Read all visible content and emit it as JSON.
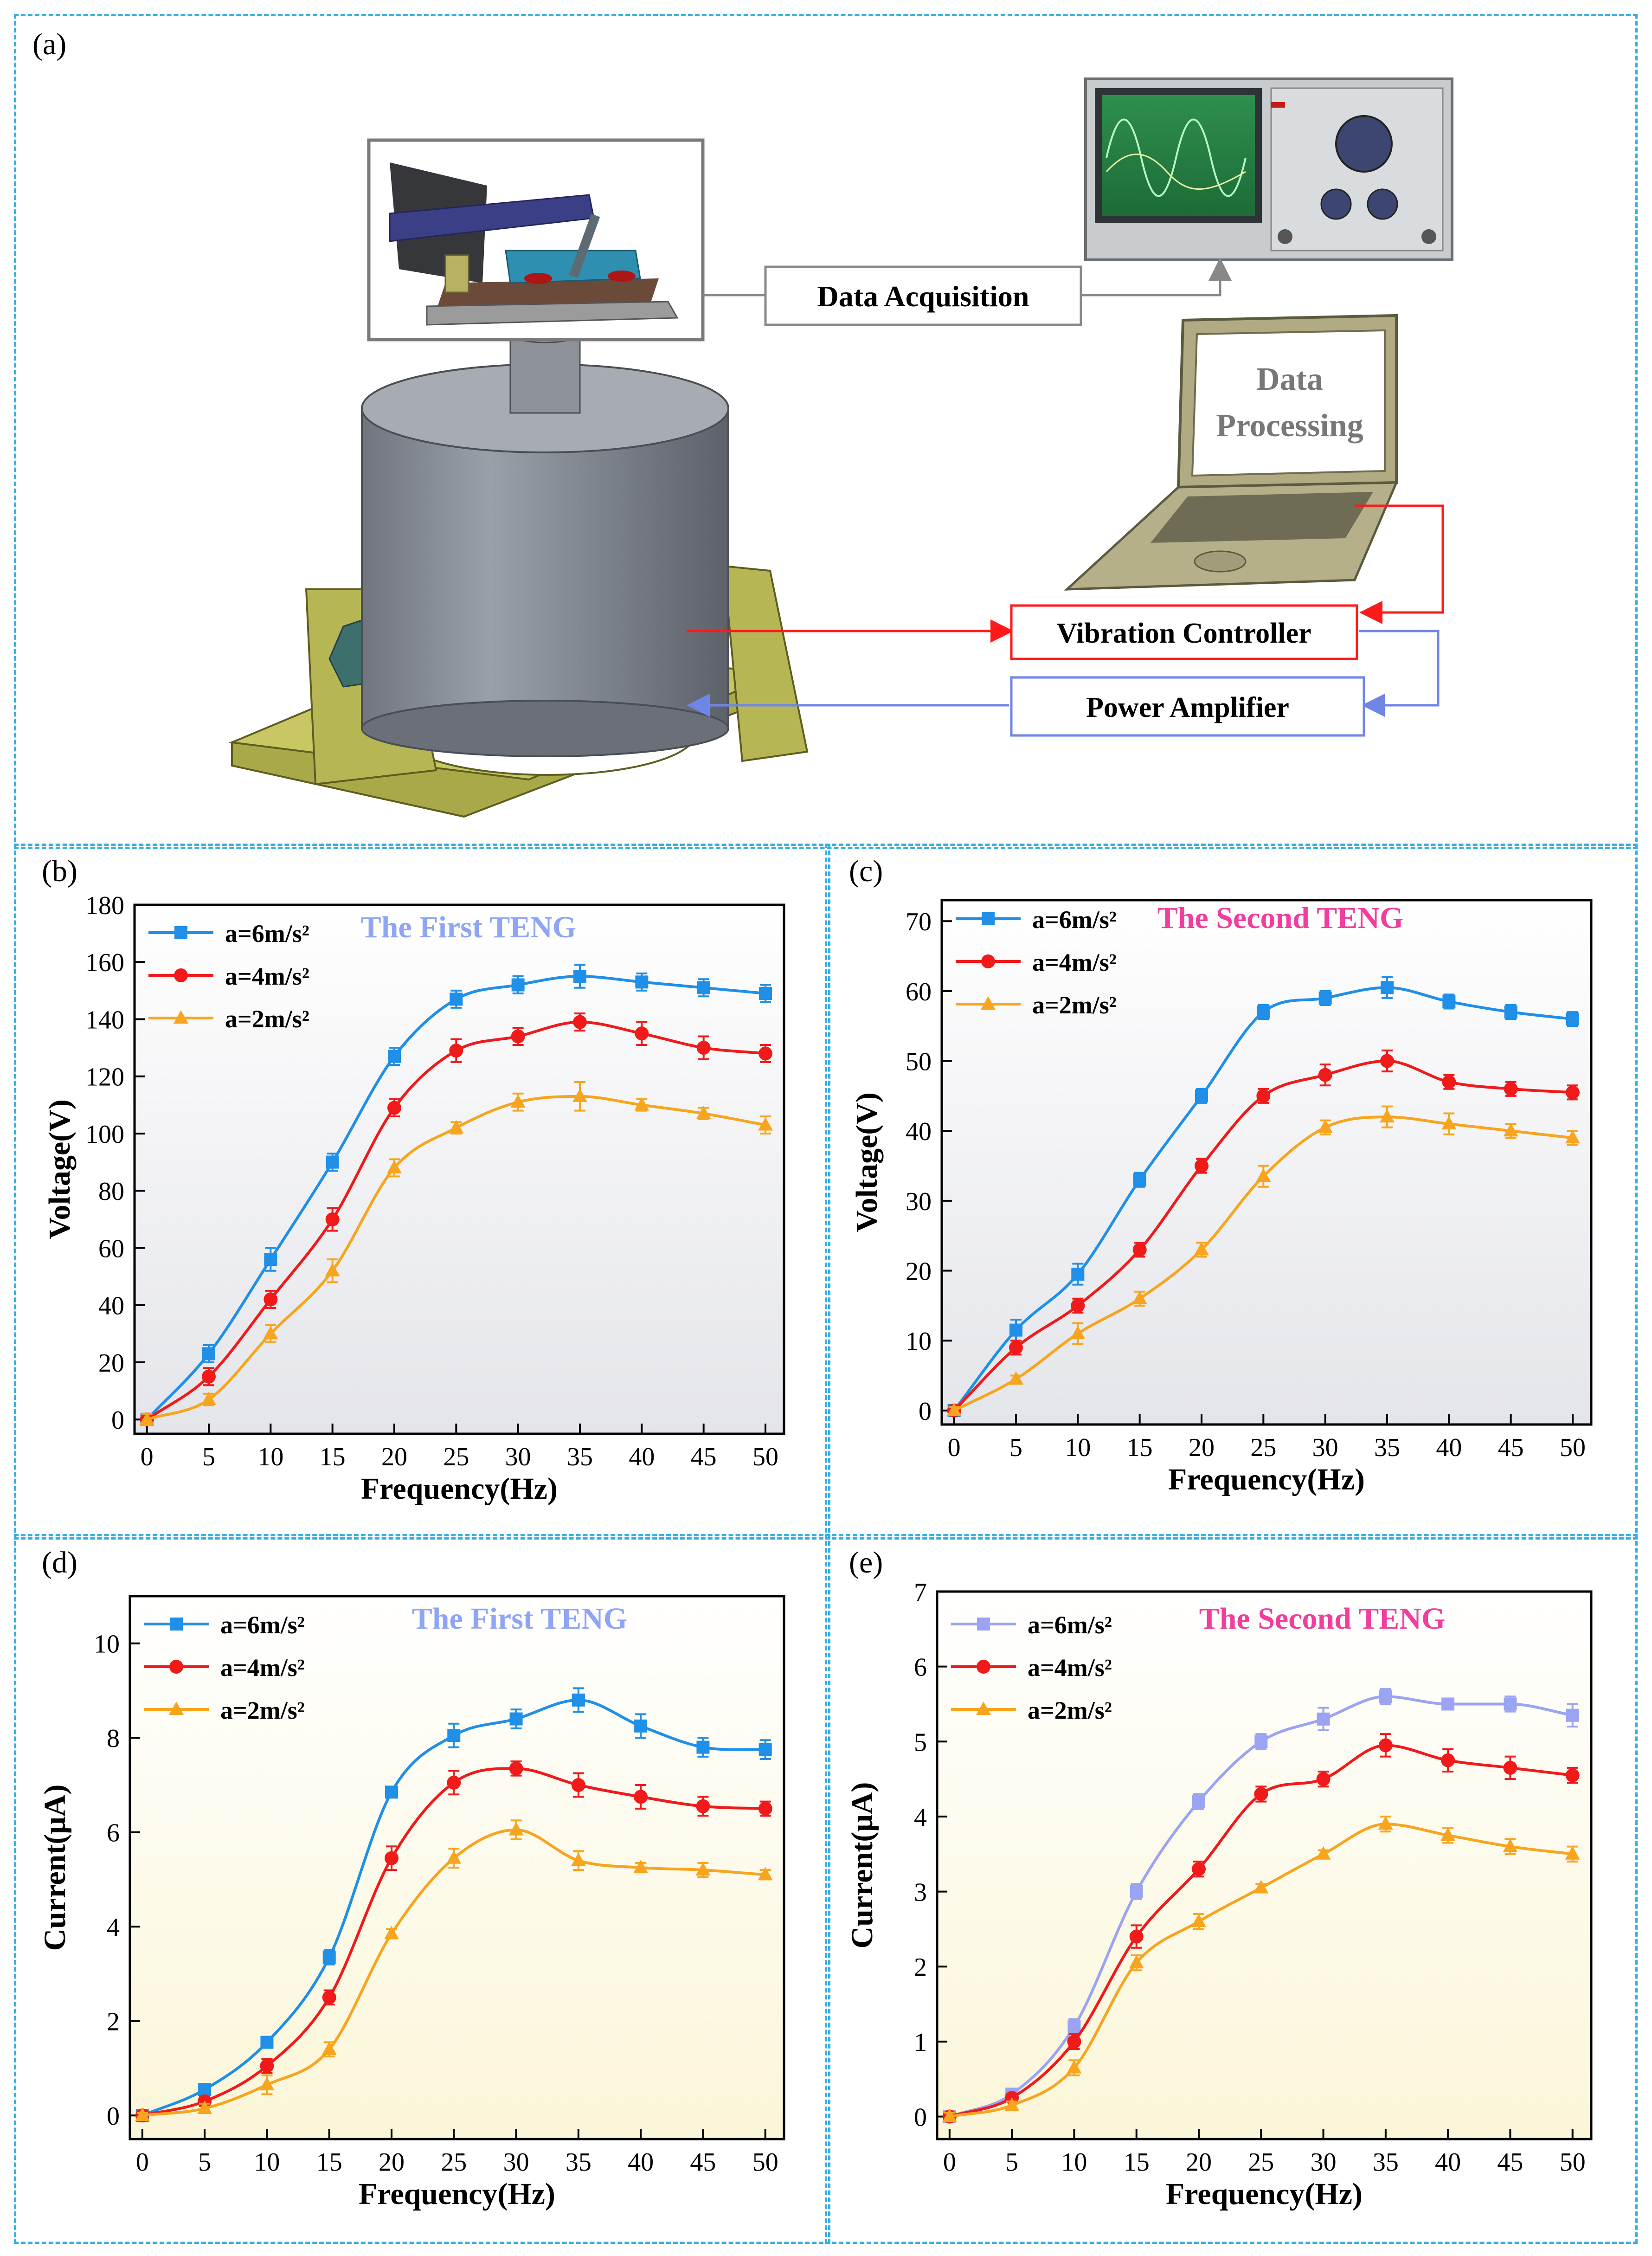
{
  "panels": {
    "a": {
      "label": "(a)",
      "boxes": {
        "data_acquisition": "Data Acquisition",
        "data_processing_line1": "Data",
        "data_processing_line2": "Processing",
        "vibration_controller": "Vibration Controller",
        "power_amplifier": "Power Amplifier"
      },
      "colors": {
        "controller": "#ff1a1a",
        "amplifier": "#6f86e6",
        "acquisition": "#888888"
      }
    },
    "b": {
      "label": "(b)"
    },
    "c": {
      "label": "(c)"
    },
    "d": {
      "label": "(d)"
    },
    "e": {
      "label": "(e)"
    }
  },
  "chart_data": [
    {
      "id": "b",
      "type": "line",
      "title": "The First TENG",
      "title_color": "#8ea4f4",
      "xlabel": "Frequency(Hz)",
      "ylabel": "Voltage(V)",
      "x": [
        0,
        5,
        10,
        15,
        20,
        25,
        30,
        35,
        40,
        45,
        50
      ],
      "xlim": [
        -1,
        51.5
      ],
      "ylim": [
        -5,
        180
      ],
      "yticks": [
        0,
        20,
        40,
        60,
        80,
        100,
        120,
        140,
        160,
        180
      ],
      "series": [
        {
          "name": "a=6m/s²",
          "color": "#1f8fe8",
          "marker": "square",
          "values": [
            0,
            23,
            56,
            90,
            127,
            147,
            152,
            155,
            153,
            151,
            149
          ],
          "errors": [
            2,
            3,
            4,
            3,
            3,
            3,
            3,
            4,
            3,
            3,
            3
          ]
        },
        {
          "name": "a=4m/s²",
          "color": "#f01a1a",
          "marker": "circle",
          "values": [
            0,
            15,
            42,
            70,
            109,
            129,
            134,
            139,
            135,
            130,
            128
          ],
          "errors": [
            2,
            3,
            3,
            4,
            3,
            4,
            3,
            3,
            4,
            4,
            3
          ]
        },
        {
          "name": "a=2m/s²",
          "color": "#f7a51e",
          "marker": "triangle",
          "values": [
            0,
            7,
            30,
            52,
            88,
            102,
            111,
            113,
            110,
            107,
            103
          ],
          "errors": [
            2,
            2,
            3,
            4,
            3,
            2,
            3,
            5,
            2,
            2,
            3
          ]
        }
      ]
    },
    {
      "id": "c",
      "type": "line",
      "title": "The Second TENG",
      "title_color": "#f03d9e",
      "xlabel": "Frequency(Hz)",
      "ylabel": "Voltage(V)",
      "x": [
        0,
        5,
        10,
        15,
        20,
        25,
        30,
        35,
        40,
        45,
        50
      ],
      "xlim": [
        -1,
        51.5
      ],
      "ylim": [
        -2,
        73
      ],
      "yticks": [
        0,
        10,
        20,
        30,
        40,
        50,
        60,
        70
      ],
      "series": [
        {
          "name": "a=6m/s²",
          "color": "#1f8fe8",
          "marker": "square",
          "values": [
            0,
            11.5,
            19.5,
            33,
            45,
            57,
            59,
            60.5,
            58.5,
            57,
            56
          ],
          "errors": [
            0.5,
            1.5,
            1.5,
            1,
            1,
            1,
            1,
            1.5,
            1,
            1,
            1
          ]
        },
        {
          "name": "a=4m/s²",
          "color": "#f01a1a",
          "marker": "circle",
          "values": [
            0,
            9,
            15,
            23,
            35,
            45,
            48,
            50,
            47,
            46,
            45.5
          ],
          "errors": [
            0.5,
            1,
            1,
            1,
            1,
            1,
            1.5,
            1.5,
            1,
            1,
            1
          ]
        },
        {
          "name": "a=2m/s²",
          "color": "#f7a51e",
          "marker": "triangle",
          "values": [
            0,
            4.5,
            11,
            16,
            23,
            33.5,
            40.5,
            42,
            41,
            40,
            39
          ],
          "errors": [
            0.5,
            0.5,
            1.5,
            1,
            1,
            1.5,
            1,
            1.5,
            1.5,
            1,
            1
          ]
        }
      ]
    },
    {
      "id": "d",
      "type": "line",
      "title": "The First TENG",
      "title_color": "#8ea4f4",
      "xlabel": "Frequency(Hz)",
      "ylabel": "Current(μA)",
      "x": [
        0,
        5,
        10,
        15,
        20,
        25,
        30,
        35,
        40,
        45,
        50
      ],
      "xlim": [
        -1,
        51.5
      ],
      "ylim": [
        -0.5,
        11
      ],
      "yticks": [
        0,
        2,
        4,
        6,
        8,
        10
      ],
      "series": [
        {
          "name": "a=6m/s²",
          "color": "#1f8fe8",
          "marker": "square",
          "values": [
            0,
            0.55,
            1.55,
            3.35,
            6.85,
            8.05,
            8.4,
            8.8,
            8.25,
            7.8,
            7.75
          ],
          "errors": [
            0.05,
            0.1,
            0.1,
            0.15,
            0.1,
            0.25,
            0.2,
            0.25,
            0.25,
            0.2,
            0.2
          ]
        },
        {
          "name": "a=4m/s²",
          "color": "#f01a1a",
          "marker": "circle",
          "values": [
            0,
            0.3,
            1.05,
            2.5,
            5.45,
            7.05,
            7.35,
            7.0,
            6.75,
            6.55,
            6.5
          ],
          "errors": [
            0.05,
            0.1,
            0.15,
            0.15,
            0.25,
            0.25,
            0.15,
            0.25,
            0.25,
            0.2,
            0.15
          ]
        },
        {
          "name": "a=2m/s²",
          "color": "#f7a51e",
          "marker": "triangle",
          "values": [
            0,
            0.15,
            0.65,
            1.4,
            3.85,
            5.45,
            6.05,
            5.4,
            5.25,
            5.2,
            5.1
          ],
          "errors": [
            0.05,
            0.1,
            0.2,
            0.15,
            0.1,
            0.2,
            0.2,
            0.2,
            0.1,
            0.15,
            0.1
          ]
        }
      ]
    },
    {
      "id": "e",
      "type": "line",
      "title": "The Second TENG",
      "title_color": "#f03d9e",
      "xlabel": "Frequency(Hz)",
      "ylabel": "Current(μA)",
      "x": [
        0,
        5,
        10,
        15,
        20,
        25,
        30,
        35,
        40,
        45,
        50
      ],
      "xlim": [
        -1,
        51.5
      ],
      "ylim": [
        -0.3,
        7
      ],
      "yticks": [
        0,
        1,
        2,
        3,
        4,
        5,
        6,
        7
      ],
      "series": [
        {
          "name": "a=6m/s²",
          "color": "#9aa4f2",
          "marker": "square",
          "values": [
            0,
            0.3,
            1.2,
            3.0,
            4.2,
            5.0,
            5.3,
            5.6,
            5.5,
            5.5,
            5.35
          ],
          "errors": [
            0.05,
            0.05,
            0.1,
            0.1,
            0.1,
            0.1,
            0.15,
            0.1,
            0.05,
            0.1,
            0.15
          ]
        },
        {
          "name": "a=4m/s²",
          "color": "#f01a1a",
          "marker": "circle",
          "values": [
            0,
            0.25,
            1.0,
            2.4,
            3.3,
            4.3,
            4.5,
            4.95,
            4.75,
            4.65,
            4.55
          ],
          "errors": [
            0.05,
            0.05,
            0.1,
            0.15,
            0.1,
            0.1,
            0.1,
            0.15,
            0.15,
            0.15,
            0.1
          ]
        },
        {
          "name": "a=2m/s²",
          "color": "#f7a51e",
          "marker": "triangle",
          "values": [
            0,
            0.15,
            0.65,
            2.05,
            2.6,
            3.05,
            3.5,
            3.9,
            3.75,
            3.6,
            3.5
          ],
          "errors": [
            0.05,
            0.05,
            0.1,
            0.1,
            0.1,
            0.05,
            0.05,
            0.1,
            0.1,
            0.1,
            0.1
          ]
        }
      ]
    }
  ]
}
